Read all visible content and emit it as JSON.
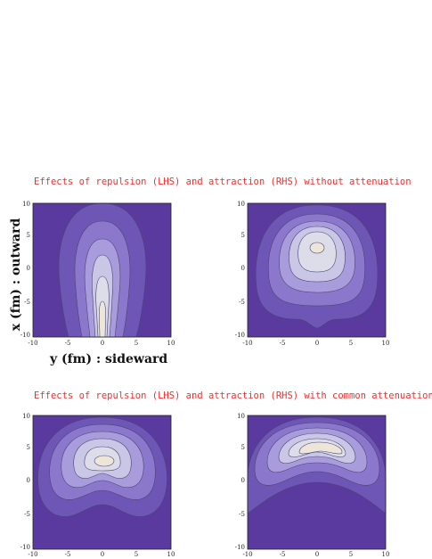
{
  "captions": {
    "top": "Effects of repulsion (LHS) and attraction (RHS) without attenuation",
    "bottom": "Effects of repulsion (LHS) and attraction (RHS) with common attenuation"
  },
  "axes": {
    "y_label": "x (fm) :  outward",
    "x_label": "y (fm) :  sideward",
    "x_ticks": [
      "-10",
      "-5",
      "0",
      "5",
      "10"
    ],
    "y_ticks": [
      "10",
      "5",
      "0",
      "-5",
      "-10"
    ]
  },
  "colors": {
    "caption": "#ff2a2a",
    "contour_levels": [
      "#5a3a9e",
      "#6e56b6",
      "#8b78cd",
      "#a99cdc",
      "#c9c6e6",
      "#ddddea",
      "#ede6d8"
    ],
    "line": "#4a4570"
  },
  "panels": [
    {
      "id": "top-left",
      "shape": "teardrop"
    },
    {
      "id": "top-right",
      "shape": "blob-top"
    },
    {
      "id": "bottom-left",
      "shape": "arch-small"
    },
    {
      "id": "bottom-right",
      "shape": "arch-wide"
    }
  ]
}
